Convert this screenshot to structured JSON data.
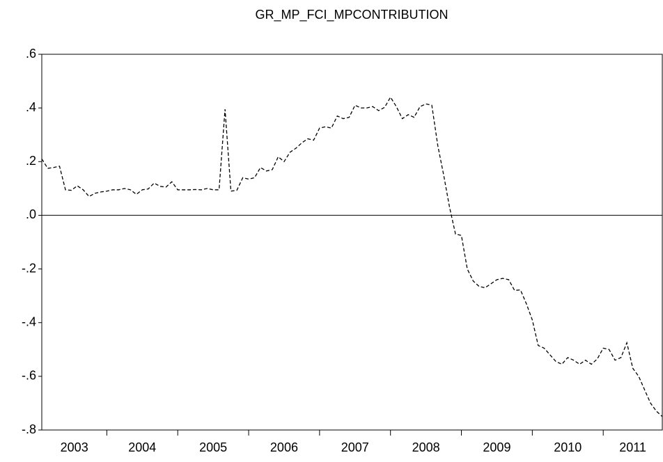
{
  "chart_data": {
    "type": "line",
    "title": "GR_MP_FCI_MPCONTRIBUTION",
    "x": [
      2003.083,
      2003.167,
      2003.25,
      2003.333,
      2003.417,
      2003.5,
      2003.583,
      2003.667,
      2003.75,
      2003.833,
      2003.917,
      2004.0,
      2004.083,
      2004.167,
      2004.25,
      2004.333,
      2004.417,
      2004.5,
      2004.583,
      2004.667,
      2004.75,
      2004.833,
      2004.917,
      2005.0,
      2005.083,
      2005.167,
      2005.25,
      2005.333,
      2005.417,
      2005.5,
      2005.583,
      2005.667,
      2005.75,
      2005.833,
      2005.917,
      2006.0,
      2006.083,
      2006.167,
      2006.25,
      2006.333,
      2006.417,
      2006.5,
      2006.583,
      2006.667,
      2006.75,
      2006.833,
      2006.917,
      2007.0,
      2007.083,
      2007.167,
      2007.25,
      2007.333,
      2007.417,
      2007.5,
      2007.583,
      2007.667,
      2007.75,
      2007.833,
      2007.917,
      2008.0,
      2008.083,
      2008.167,
      2008.25,
      2008.333,
      2008.417,
      2008.5,
      2008.583,
      2008.667,
      2008.75,
      2008.833,
      2008.917,
      2009.0,
      2009.083,
      2009.167,
      2009.25,
      2009.333,
      2009.417,
      2009.5,
      2009.583,
      2009.667,
      2009.75,
      2009.833,
      2009.917,
      2010.0,
      2010.083,
      2010.167,
      2010.25,
      2010.333,
      2010.417,
      2010.5,
      2010.583,
      2010.667,
      2010.75,
      2010.833,
      2010.917,
      2011.0,
      2011.083,
      2011.167,
      2011.25,
      2011.333,
      2011.417,
      2011.5,
      2011.583,
      2011.667,
      2011.75,
      2011.833
    ],
    "series": [
      {
        "color": "#000000",
        "values": [
          0.21,
          0.175,
          0.178,
          0.183,
          0.095,
          0.093,
          0.11,
          0.095,
          0.07,
          0.082,
          0.087,
          0.09,
          0.095,
          0.095,
          0.1,
          0.095,
          0.078,
          0.095,
          0.098,
          0.12,
          0.108,
          0.105,
          0.125,
          0.095,
          0.095,
          0.095,
          0.096,
          0.095,
          0.1,
          0.095,
          0.095,
          0.395,
          0.09,
          0.093,
          0.14,
          0.135,
          0.14,
          0.178,
          0.165,
          0.17,
          0.218,
          0.2,
          0.235,
          0.25,
          0.27,
          0.285,
          0.28,
          0.325,
          0.33,
          0.325,
          0.37,
          0.36,
          0.365,
          0.41,
          0.4,
          0.4,
          0.405,
          0.39,
          0.402,
          0.44,
          0.405,
          0.36,
          0.375,
          0.365,
          0.405,
          0.415,
          0.41,
          0.26,
          0.15,
          0.03,
          -0.07,
          -0.075,
          -0.2,
          -0.245,
          -0.265,
          -0.27,
          -0.255,
          -0.24,
          -0.235,
          -0.24,
          -0.28,
          -0.278,
          -0.33,
          -0.39,
          -0.485,
          -0.495,
          -0.52,
          -0.545,
          -0.555,
          -0.53,
          -0.54,
          -0.555,
          -0.54,
          -0.555,
          -0.535,
          -0.495,
          -0.5,
          -0.54,
          -0.53,
          -0.475,
          -0.57,
          -0.6,
          -0.65,
          -0.7,
          -0.73,
          -0.75
        ]
      }
    ],
    "xlim": [
      2003.083,
      2011.833
    ],
    "xticks": [
      2003,
      2004,
      2005,
      2006,
      2007,
      2008,
      2009,
      2010,
      2011
    ],
    "ylim": [
      -0.8,
      0.6
    ],
    "yticks": [
      {
        "value": -0.8,
        "label": "-.8"
      },
      {
        "value": -0.6,
        "label": "-.6"
      },
      {
        "value": -0.4,
        "label": "-.4"
      },
      {
        "value": -0.2,
        "label": "-.2"
      },
      {
        "value": 0,
        "label": ".0"
      },
      {
        "value": 0.2,
        "label": ".2"
      },
      {
        "value": 0.4,
        "label": ".4"
      },
      {
        "value": 0.6,
        "label": ".6"
      }
    ],
    "zero_line": true,
    "dashed": true
  }
}
